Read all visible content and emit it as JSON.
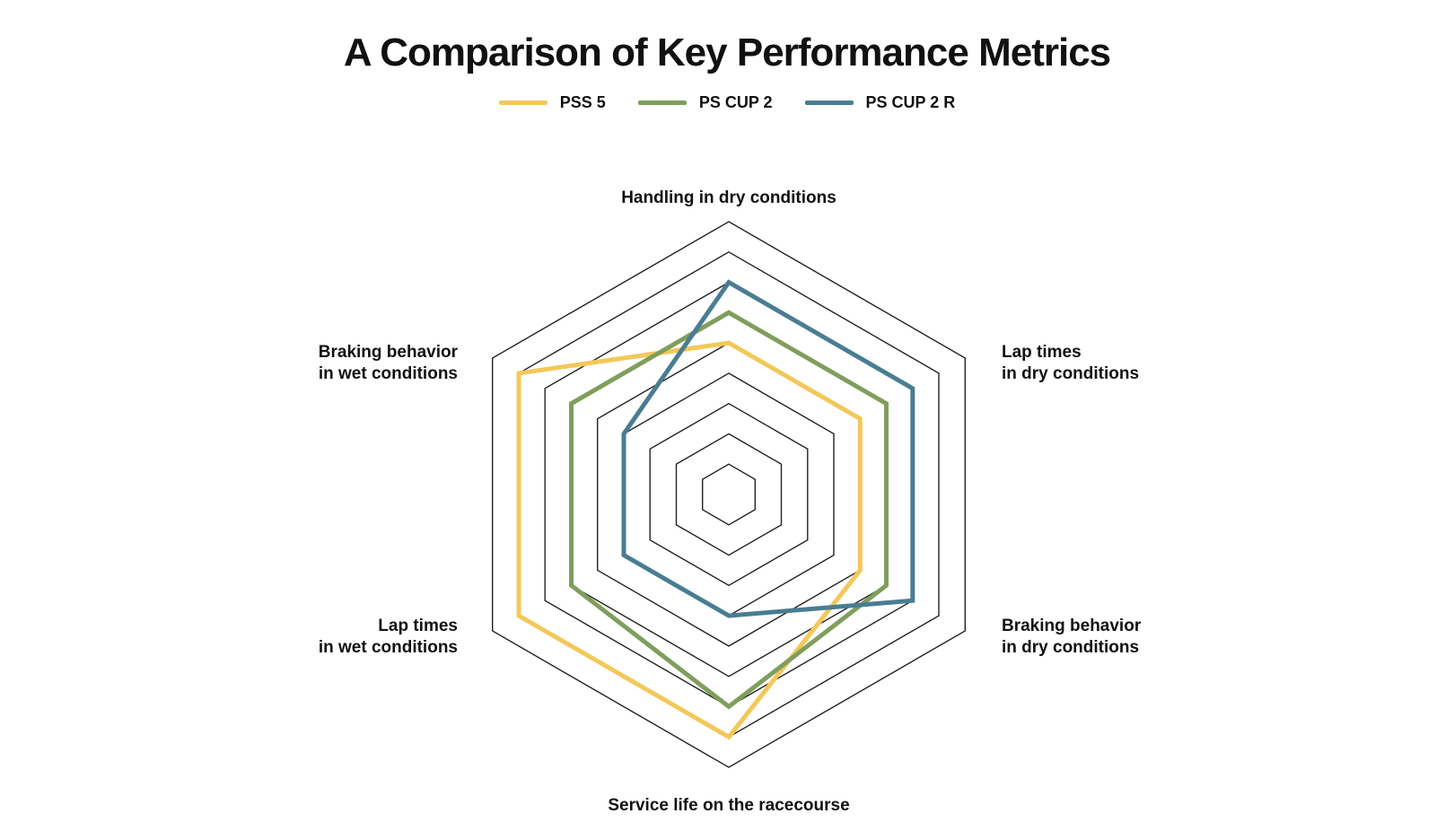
{
  "title": "A Comparison of Key Performance Metrics",
  "legend": [
    {
      "label": "PSS 5",
      "color": "#f3c85a"
    },
    {
      "label": "PS CUP 2",
      "color": "#7f9e5c"
    },
    {
      "label": "PS CUP 2 R",
      "color": "#4a7d92"
    }
  ],
  "chart_data": {
    "type": "radar",
    "title": "A Comparison of Key Performance Metrics",
    "axes": [
      {
        "lines": [
          "Handling in dry conditions"
        ]
      },
      {
        "lines": [
          "Lap times",
          "in dry conditions"
        ]
      },
      {
        "lines": [
          "Braking behavior",
          "in dry conditions"
        ]
      },
      {
        "lines": [
          "Service life on the racecourse"
        ]
      },
      {
        "lines": [
          "Lap times",
          "in wet conditions"
        ]
      },
      {
        "lines": [
          "Braking behavior",
          "in wet conditions"
        ]
      }
    ],
    "rings": 9,
    "range": [
      0,
      9
    ],
    "grid": true,
    "legend_position": "top",
    "series": [
      {
        "name": "PSS 5",
        "color": "#f3c85a",
        "values": [
          5,
          5,
          5,
          8,
          8,
          8
        ]
      },
      {
        "name": "PS CUP 2",
        "color": "#7f9e5c",
        "values": [
          6,
          6,
          6,
          7,
          6,
          6
        ]
      },
      {
        "name": "PS CUP 2 R",
        "color": "#4a7d92",
        "values": [
          7,
          7,
          7,
          4,
          4,
          4
        ]
      }
    ]
  }
}
